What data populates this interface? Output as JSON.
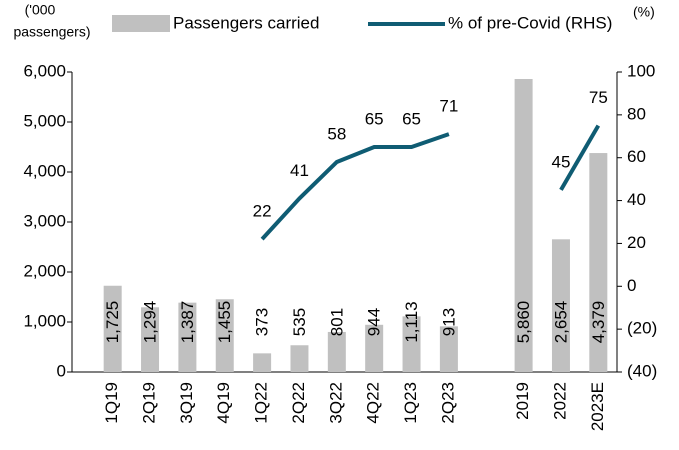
{
  "chart_data": {
    "type": "combo",
    "y_label": [
      "('000",
      "passengers)"
    ],
    "y2_label": "(%)",
    "categories": [
      "1Q19",
      "2Q19",
      "3Q19",
      "4Q19",
      "1Q22",
      "2Q22",
      "3Q22",
      "4Q22",
      "1Q23",
      "2Q23",
      null,
      "2019",
      "2022",
      "2023E"
    ],
    "series": [
      {
        "name": "Passengers carried",
        "type": "bar",
        "color": "#c0c0c0",
        "values": [
          1725,
          1294,
          1387,
          1455,
          373,
          535,
          801,
          944,
          1113,
          913,
          null,
          5860,
          2654,
          4379
        ],
        "value_labels": [
          "1,725",
          "1,294",
          "1,387",
          "1,455",
          "373",
          "535",
          "801",
          "944",
          "1,113",
          "913",
          null,
          "5,860",
          "2,654",
          "4,379"
        ]
      },
      {
        "name": "% of pre-Covid (RHS)",
        "type": "line",
        "axis": "y2",
        "color": "#0f5c73",
        "values": [
          null,
          null,
          null,
          null,
          22,
          41,
          58,
          65,
          65,
          71,
          null,
          null,
          45,
          75
        ]
      }
    ],
    "ylim": [
      0,
      6000
    ],
    "yticks": [
      0,
      {
        "value": 1000,
        "label": "1,000"
      },
      {
        "value": 2000,
        "label": "2,000"
      },
      {
        "value": 3000,
        "label": "3,000"
      },
      {
        "value": 4000,
        "label": "4,000"
      },
      {
        "value": 5000,
        "label": "5,000"
      },
      {
        "value": 6000,
        "label": "6,000"
      }
    ],
    "y2lim": [
      -40,
      100
    ],
    "y2ticks": [
      {
        "value": -40,
        "label": "(40)"
      },
      {
        "value": -20,
        "label": "(20)"
      },
      0,
      20,
      40,
      60,
      80,
      100
    ]
  }
}
